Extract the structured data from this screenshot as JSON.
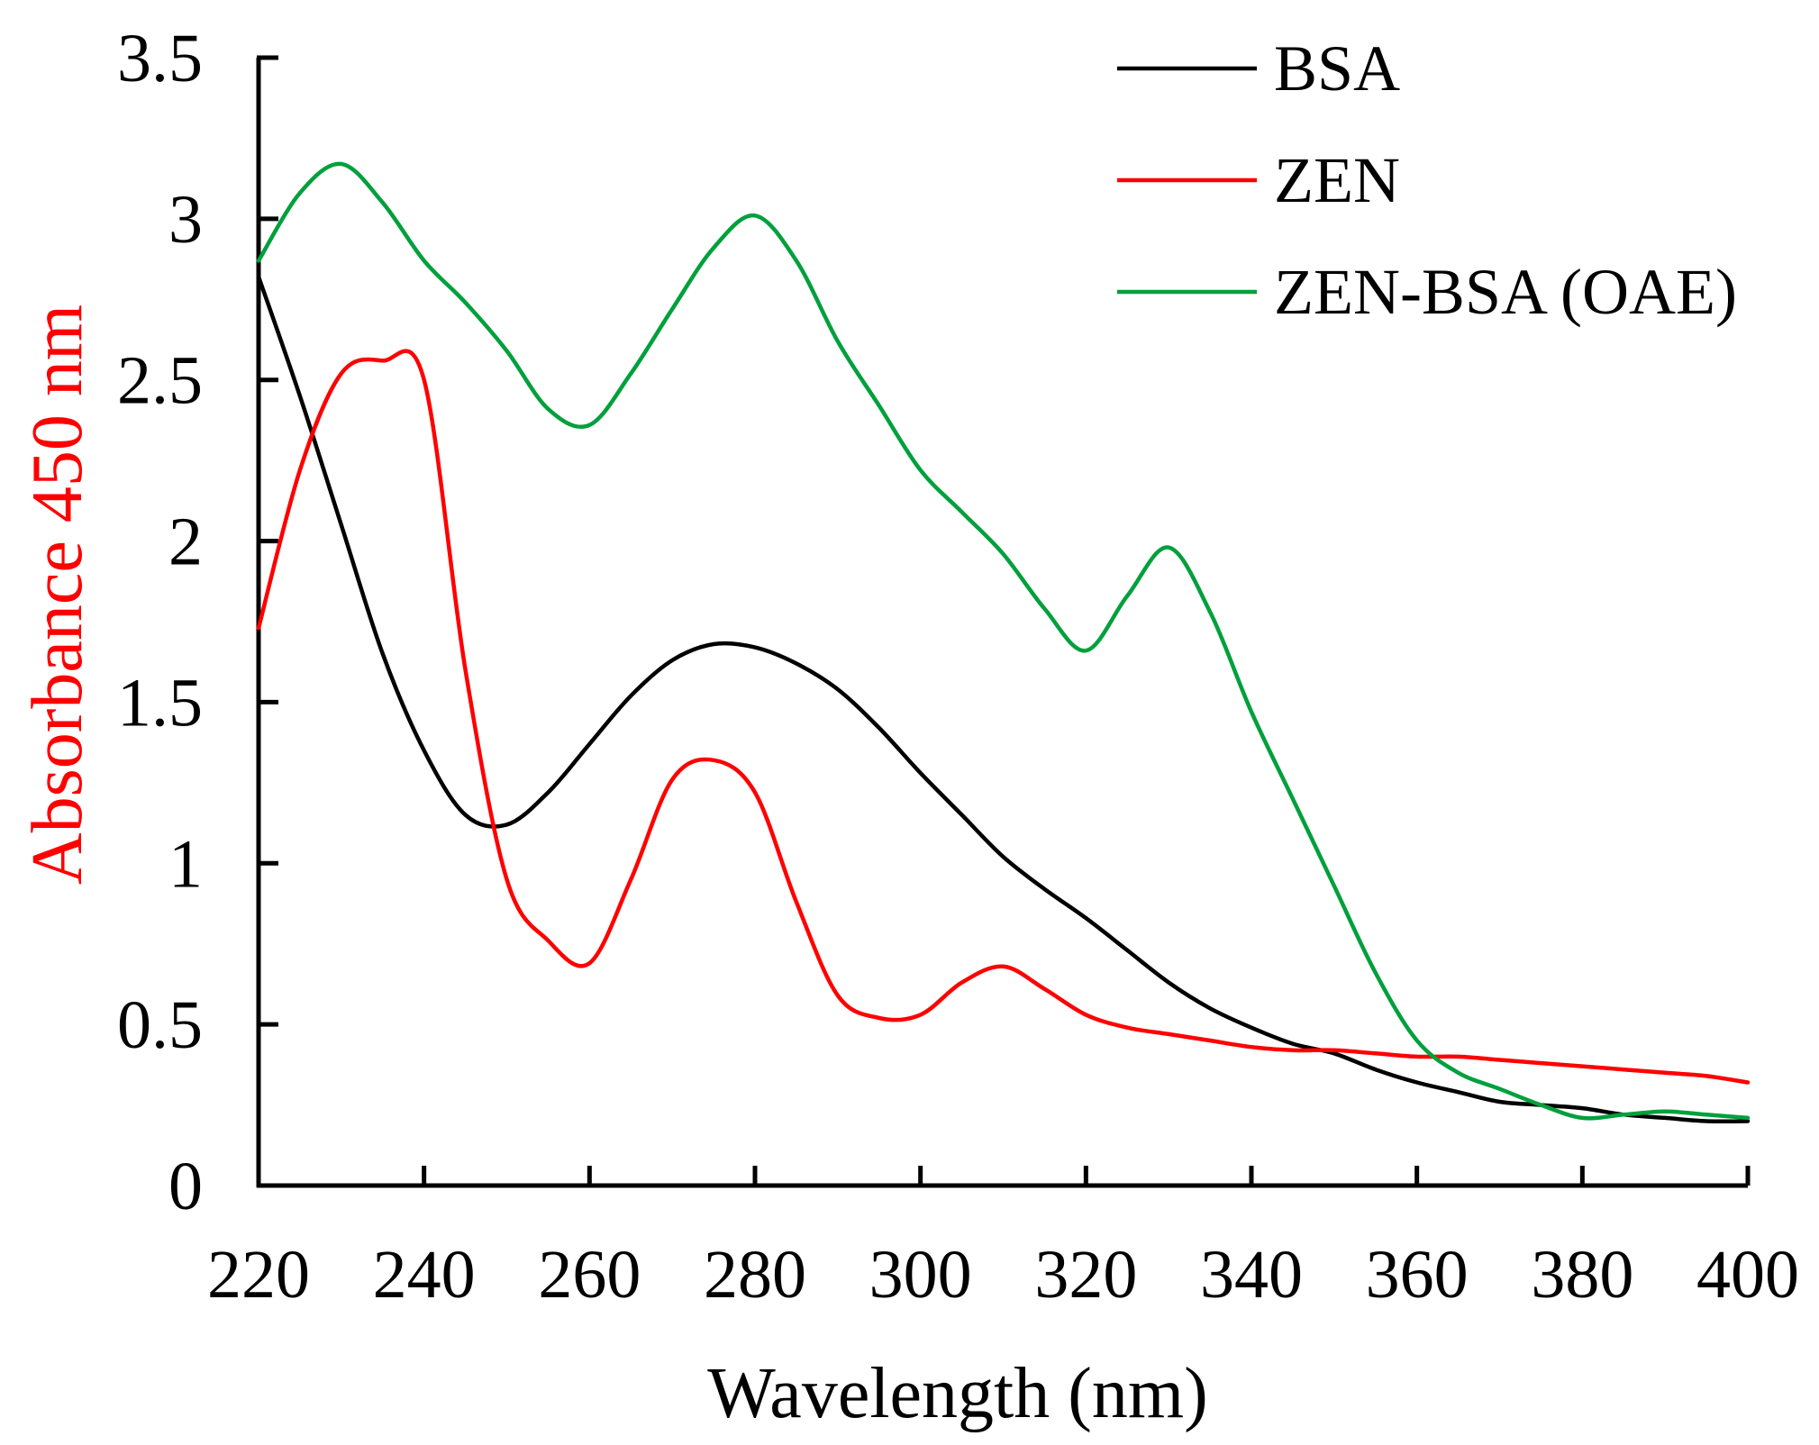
{
  "chart_data": {
    "type": "line",
    "title": "",
    "xlabel": "Wavelength (nm)",
    "ylabel": "Absorbance  450 nm",
    "xlim": [
      220,
      400
    ],
    "ylim": [
      0,
      3.5
    ],
    "xticks": [
      "220",
      "240",
      "260",
      "280",
      "300",
      "320",
      "340",
      "360",
      "380",
      "400"
    ],
    "yticks": [
      "0",
      "0.5",
      "1",
      "1.5",
      "2",
      "2.5",
      "3",
      "3.5"
    ],
    "grid": false,
    "legend_position": "top-right",
    "series": [
      {
        "name": "BSA",
        "color": "#000000",
        "x": [
          220,
          225,
          230,
          235,
          240,
          245,
          250,
          255,
          260,
          265,
          270,
          275,
          280,
          285,
          290,
          295,
          300,
          305,
          310,
          315,
          320,
          325,
          330,
          335,
          340,
          345,
          350,
          355,
          360,
          365,
          370,
          375,
          380,
          385,
          390,
          395,
          400
        ],
        "y": [
          2.82,
          2.45,
          2.05,
          1.65,
          1.35,
          1.15,
          1.12,
          1.22,
          1.37,
          1.52,
          1.63,
          1.68,
          1.67,
          1.62,
          1.54,
          1.42,
          1.28,
          1.15,
          1.02,
          0.92,
          0.83,
          0.73,
          0.63,
          0.55,
          0.49,
          0.44,
          0.41,
          0.36,
          0.32,
          0.29,
          0.26,
          0.25,
          0.24,
          0.22,
          0.21,
          0.2,
          0.2
        ]
      },
      {
        "name": "ZEN",
        "color": "#ff0000",
        "x": [
          220,
          225,
          230,
          235,
          240,
          245,
          250,
          255,
          260,
          265,
          270,
          275,
          280,
          285,
          290,
          295,
          300,
          305,
          310,
          315,
          320,
          325,
          330,
          335,
          340,
          345,
          350,
          355,
          360,
          365,
          370,
          375,
          380,
          385,
          390,
          395,
          400
        ],
        "y": [
          1.73,
          2.22,
          2.52,
          2.56,
          2.5,
          1.6,
          0.95,
          0.76,
          0.69,
          0.95,
          1.26,
          1.32,
          1.22,
          0.88,
          0.59,
          0.52,
          0.53,
          0.63,
          0.68,
          0.61,
          0.53,
          0.49,
          0.47,
          0.45,
          0.43,
          0.42,
          0.42,
          0.41,
          0.4,
          0.4,
          0.39,
          0.38,
          0.37,
          0.36,
          0.35,
          0.34,
          0.32
        ]
      },
      {
        "name": "ZEN-BSA (OAE)",
        "color": "#00a03c",
        "x": [
          220,
          225,
          230,
          235,
          240,
          245,
          250,
          255,
          260,
          265,
          270,
          275,
          280,
          285,
          290,
          295,
          300,
          305,
          310,
          315,
          320,
          325,
          330,
          335,
          340,
          345,
          350,
          355,
          360,
          365,
          370,
          375,
          380,
          385,
          390,
          395,
          400
        ],
        "y": [
          2.87,
          3.08,
          3.17,
          3.05,
          2.87,
          2.74,
          2.59,
          2.41,
          2.36,
          2.52,
          2.72,
          2.91,
          3.01,
          2.87,
          2.62,
          2.42,
          2.22,
          2.09,
          1.96,
          1.79,
          1.66,
          1.83,
          1.98,
          1.78,
          1.47,
          1.2,
          0.93,
          0.66,
          0.45,
          0.35,
          0.3,
          0.25,
          0.21,
          0.22,
          0.23,
          0.22,
          0.21
        ]
      }
    ]
  }
}
